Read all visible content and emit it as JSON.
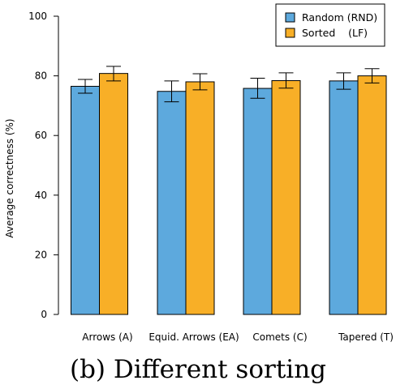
{
  "chart_data": {
    "type": "bar",
    "categories": [
      "Arrows (A)",
      "Equid. Arrows (EA)",
      "Comets (C)",
      "Tapered (T)"
    ],
    "series": [
      {
        "name": "Random (RND)",
        "color": "#5DA9DD",
        "values": [
          76.5,
          74.8,
          75.8,
          78.3
        ],
        "error_low": [
          74.2,
          71.3,
          72.5,
          75.5
        ],
        "error_high": [
          78.8,
          78.3,
          79.2,
          81.0
        ]
      },
      {
        "name": "Sorted    (LF)",
        "color": "#F8AF27",
        "values": [
          80.8,
          78.0,
          78.4,
          80.0
        ],
        "error_low": [
          78.3,
          75.3,
          75.9,
          77.6
        ],
        "error_high": [
          83.2,
          80.7,
          81.0,
          82.4
        ]
      }
    ],
    "title": "",
    "xlabel": "",
    "ylabel": "Average correctness (%)",
    "ylim": [
      0,
      100
    ],
    "yticks": [
      0,
      20,
      40,
      60,
      80,
      100
    ],
    "grid": false,
    "legend_position": "top-right"
  },
  "caption": "(b)  Different sorting"
}
